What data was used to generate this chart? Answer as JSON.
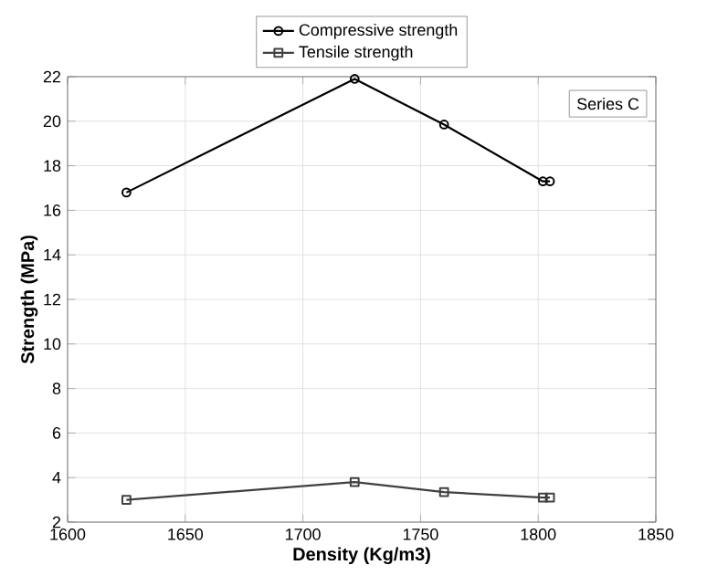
{
  "chart_data": {
    "type": "line",
    "xlabel": "Density (Kg/m3)",
    "ylabel": "Strength (MPa)",
    "x": [
      1625,
      1722,
      1760,
      1802,
      1805
    ],
    "series": [
      {
        "name": "Compressive strength",
        "color": "#000000",
        "marker": "circle",
        "values": [
          16.8,
          21.9,
          19.85,
          17.3,
          17.3
        ]
      },
      {
        "name": "Tensile strength",
        "color": "#404040",
        "marker": "square",
        "values": [
          3.0,
          3.8,
          3.35,
          3.1,
          3.1
        ]
      }
    ],
    "xlim": [
      1600,
      1850
    ],
    "xticks": [
      1600,
      1650,
      1700,
      1750,
      1800,
      1850
    ],
    "ylim": [
      2,
      22
    ],
    "yticks": [
      2,
      4,
      6,
      8,
      10,
      12,
      14,
      16,
      18,
      20,
      22
    ],
    "grid": true,
    "legend": "top",
    "line_style": "solid",
    "annotations": [
      "Series C"
    ]
  }
}
